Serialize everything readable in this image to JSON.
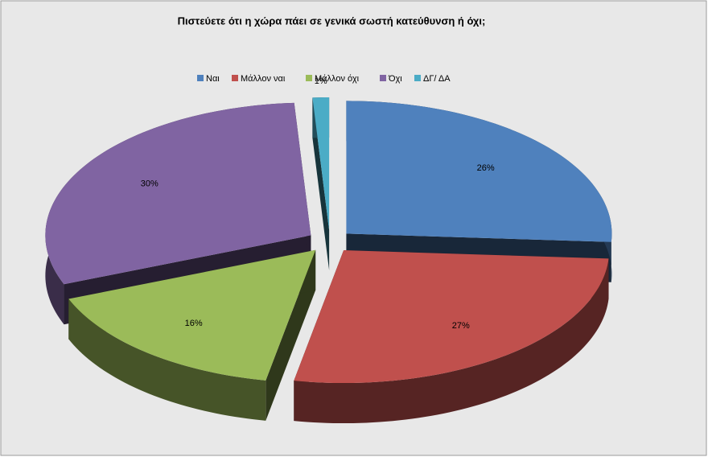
{
  "chart_data": {
    "type": "pie3d",
    "title": "Πιστεύετε ότι η χώρα πάει σε γενικά σωστή κατεύθυνση ή όχι;",
    "categories": [
      "Ναι",
      "Μάλλον ναι",
      "Μάλλον όχι",
      "Όχι",
      "ΔΓ/ ΔΑ"
    ],
    "values": [
      26,
      27,
      16,
      30,
      1
    ],
    "value_labels": [
      "26%",
      "27%",
      "16%",
      "30%",
      "1%"
    ],
    "colors": [
      "#4f81bd",
      "#c0504d",
      "#9bbb59",
      "#8064a2",
      "#4bacc6"
    ],
    "legend": "top"
  }
}
